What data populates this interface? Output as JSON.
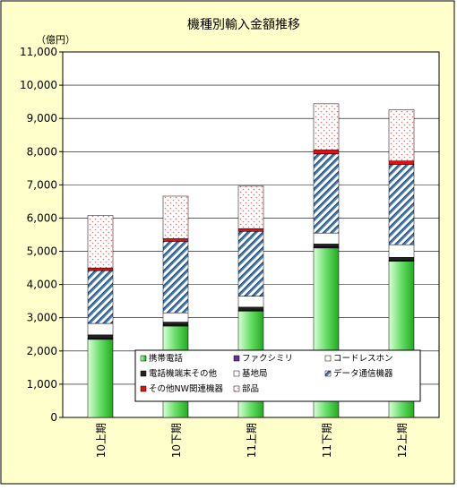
{
  "chart_data": {
    "type": "bar",
    "stacked": true,
    "title": "機種別輸入金額推移",
    "unit_label": "（億円）",
    "xlabel": "",
    "ylabel": "",
    "ylim": [
      0,
      11000
    ],
    "yticks": [
      0,
      1000,
      2000,
      3000,
      4000,
      5000,
      6000,
      7000,
      8000,
      9000,
      10000,
      11000
    ],
    "ytick_labels": [
      "0",
      "1,000",
      "2,000",
      "3,000",
      "4,000",
      "5,000",
      "6,000",
      "7,000",
      "8,000",
      "9,000",
      "10,000",
      "11,000"
    ],
    "grid": true,
    "legend_position": "bottom-center",
    "categories": [
      "10上期",
      "10下期",
      "11上期",
      "11下期",
      "12上期"
    ],
    "series": [
      {
        "name": "携帯電話",
        "values": [
          2350,
          2750,
          3200,
          5100,
          4700
        ],
        "pattern": "green-gradient"
      },
      {
        "name": "ファクシミリ",
        "values": [
          20,
          20,
          20,
          20,
          20
        ],
        "pattern": "purple"
      },
      {
        "name": "コードレスホン",
        "values": [
          15,
          15,
          15,
          15,
          15
        ],
        "pattern": "white"
      },
      {
        "name": "電話機端末その他",
        "values": [
          100,
          85,
          85,
          85,
          85
        ],
        "pattern": "dark"
      },
      {
        "name": "基地局",
        "values": [
          345,
          280,
          330,
          330,
          380
        ],
        "pattern": "white"
      },
      {
        "name": "データ通信機器",
        "values": [
          1590,
          2150,
          1950,
          2380,
          2410
        ],
        "pattern": "diagonal-stripes"
      },
      {
        "name": "その他NW関連機器",
        "values": [
          80,
          80,
          80,
          120,
          110
        ],
        "pattern": "red"
      },
      {
        "name": "部品",
        "values": [
          1580,
          1280,
          1280,
          1390,
          1540
        ],
        "pattern": "pink-dots"
      }
    ]
  },
  "colors": {
    "background": "#ffffcc",
    "green_light": "#ccffcc",
    "green_dark": "#33cc33",
    "purple": "#663399",
    "dark": "#333333",
    "stripe_blue": "#6699cc",
    "stripe_dark": "#003366",
    "red": "#cc0000",
    "dot_pink": "#ff9999"
  }
}
